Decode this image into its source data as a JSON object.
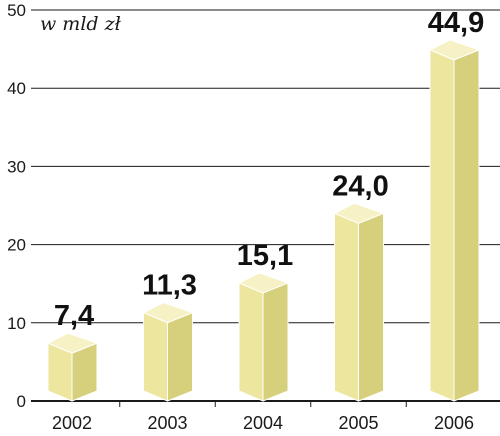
{
  "chart_data": {
    "type": "bar",
    "title": "",
    "unit_label": "w mld zł",
    "xlabel": "",
    "ylabel": "",
    "categories": [
      "2002",
      "2003",
      "2004",
      "2005",
      "2006"
    ],
    "values": [
      7.4,
      11.3,
      15.1,
      24.0,
      44.9
    ],
    "value_labels": [
      "7,4",
      "11,3",
      "15,1",
      "24,0",
      "44,9"
    ],
    "ylim": [
      0,
      50
    ],
    "yticks": [
      0,
      10,
      20,
      30,
      40,
      50
    ],
    "grid": true,
    "legend": "none",
    "colors": {
      "bar_front": "#ece69e",
      "bar_side": "#d6d07c",
      "bar_top": "#f6f2c6",
      "bar_edge": "#ffffff",
      "grid": "#1a1a1a"
    }
  }
}
